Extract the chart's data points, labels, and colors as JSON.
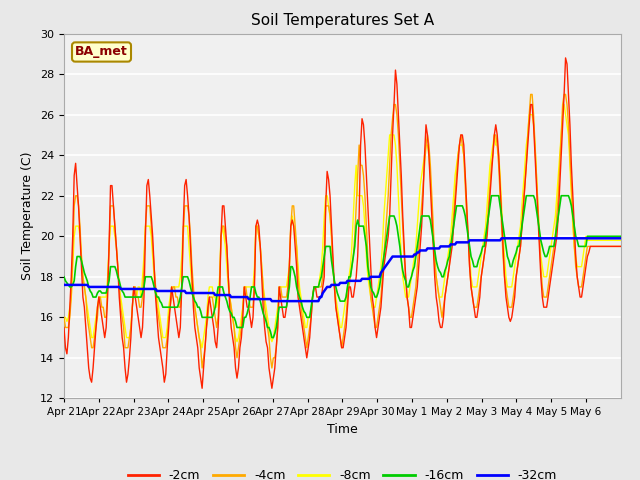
{
  "title": "Soil Temperatures Set A",
  "xlabel": "Time",
  "ylabel": "Soil Temperature (C)",
  "ylim": [
    12,
    30
  ],
  "annotation": "BA_met",
  "bg_color": "#e8e8e8",
  "plot_bg": "#f0f0f0",
  "series_colors": {
    "-2cm": "#ff2200",
    "-4cm": "#ffaa00",
    "-8cm": "#ffff00",
    "-16cm": "#00cc00",
    "-32cm": "#0000ff"
  },
  "x_tick_labels": [
    "Apr 21",
    "Apr 22",
    "Apr 23",
    "Apr 24",
    "Apr 25",
    "Apr 26",
    "Apr 27",
    "Apr 28",
    "Apr 29",
    "Apr 30",
    "May 1",
    "May 2",
    "May 3",
    "May 4",
    "May 5",
    "May 6"
  ],
  "n_days": 16,
  "pts_per_day": 24,
  "data_2cm": [
    15.5,
    14.5,
    14.2,
    15.0,
    16.5,
    18.0,
    20.0,
    23.0,
    23.6,
    22.5,
    21.5,
    20.0,
    18.5,
    17.0,
    16.5,
    15.5,
    14.5,
    13.5,
    13.0,
    12.8,
    13.5,
    14.5,
    15.5,
    16.5,
    17.0,
    16.5,
    16.0,
    15.5,
    15.0,
    15.5,
    17.0,
    19.5,
    22.5,
    22.5,
    21.5,
    20.5,
    19.5,
    18.5,
    17.0,
    16.0,
    15.0,
    14.5,
    13.5,
    12.8,
    13.2,
    14.0,
    15.0,
    16.5,
    17.5,
    17.0,
    16.5,
    16.0,
    15.5,
    15.0,
    15.5,
    17.0,
    20.0,
    22.5,
    22.8,
    22.0,
    21.0,
    20.0,
    18.5,
    17.0,
    16.0,
    15.0,
    14.5,
    14.0,
    13.5,
    12.8,
    13.2,
    14.5,
    15.5,
    16.5,
    17.5,
    17.0,
    16.5,
    16.0,
    15.5,
    15.0,
    15.5,
    17.5,
    20.5,
    22.5,
    22.8,
    22.0,
    21.0,
    19.5,
    18.0,
    16.5,
    15.5,
    15.0,
    14.5,
    13.5,
    13.0,
    12.5,
    13.5,
    14.5,
    15.5,
    16.5,
    17.0,
    16.5,
    16.0,
    15.5,
    14.8,
    14.5,
    15.5,
    17.0,
    20.0,
    21.5,
    21.5,
    20.5,
    19.5,
    18.0,
    16.5,
    15.5,
    15.0,
    14.5,
    13.5,
    13.0,
    13.5,
    14.5,
    15.0,
    16.0,
    17.5,
    17.0,
    16.5,
    16.5,
    16.0,
    15.5,
    16.0,
    17.5,
    20.5,
    20.8,
    20.5,
    19.5,
    18.0,
    16.5,
    15.5,
    14.8,
    14.5,
    13.5,
    13.0,
    12.5,
    13.0,
    13.5,
    14.5,
    15.5,
    17.5,
    17.0,
    16.5,
    16.0,
    16.0,
    16.5,
    17.0,
    18.5,
    20.5,
    20.8,
    20.5,
    19.5,
    18.5,
    17.0,
    16.5,
    16.0,
    15.5,
    15.0,
    14.5,
    14.0,
    14.5,
    15.0,
    16.0,
    17.0,
    17.5,
    17.5,
    17.0,
    17.0,
    17.0,
    17.0,
    17.5,
    18.0,
    21.5,
    23.2,
    22.8,
    22.0,
    20.5,
    19.0,
    17.5,
    16.5,
    16.0,
    15.5,
    15.0,
    14.5,
    14.5,
    15.0,
    15.5,
    16.5,
    17.5,
    17.5,
    17.0,
    17.0,
    17.5,
    18.0,
    19.0,
    21.0,
    24.5,
    25.8,
    25.5,
    24.5,
    23.0,
    21.5,
    20.0,
    18.5,
    17.0,
    16.5,
    15.5,
    15.0,
    15.5,
    16.0,
    16.5,
    17.5,
    18.5,
    19.0,
    19.5,
    20.0,
    21.0,
    23.0,
    25.0,
    26.5,
    28.2,
    27.5,
    26.0,
    24.5,
    23.0,
    21.0,
    19.5,
    18.0,
    17.0,
    16.5,
    15.5,
    15.5,
    16.0,
    16.5,
    17.0,
    17.5,
    18.5,
    19.5,
    20.5,
    22.0,
    24.0,
    25.5,
    25.0,
    24.0,
    22.5,
    21.0,
    19.5,
    18.0,
    17.0,
    16.5,
    15.8,
    15.5,
    15.5,
    16.0,
    17.0,
    17.5,
    18.0,
    18.5,
    19.0,
    19.5,
    20.5,
    21.5,
    22.5,
    23.5,
    24.5,
    25.0,
    25.0,
    24.5,
    23.0,
    21.5,
    20.0,
    18.5,
    17.5,
    17.0,
    16.5,
    16.0,
    16.0,
    16.5,
    17.0,
    18.0,
    18.5,
    19.0,
    19.5,
    20.0,
    21.0,
    22.0,
    23.0,
    24.0,
    25.0,
    25.5,
    25.0,
    24.0,
    22.5,
    21.0,
    19.5,
    18.0,
    17.0,
    16.5,
    16.0,
    15.8,
    16.0,
    16.5,
    17.0,
    18.0,
    18.5,
    19.0,
    19.5,
    20.5,
    21.5,
    22.5,
    23.5,
    24.5,
    25.5,
    26.5,
    26.5,
    25.5,
    24.0,
    22.5,
    21.0,
    19.5,
    18.0,
    17.0,
    16.5,
    16.5,
    16.5,
    17.0,
    17.5,
    18.0,
    18.5,
    19.0,
    19.5,
    20.0,
    21.0,
    22.5,
    24.0,
    25.5,
    27.0,
    28.8,
    28.5,
    27.0,
    25.5,
    23.5,
    22.0,
    20.5,
    19.0,
    18.0,
    17.5,
    17.0,
    17.0,
    17.5,
    18.0,
    18.5,
    19.0,
    19.2,
    19.5,
    19.5,
    19.5,
    19.5,
    19.5,
    19.5,
    19.5,
    19.5,
    19.5,
    19.5,
    19.5,
    19.5,
    19.5,
    19.5,
    19.5,
    19.5,
    19.5,
    19.5,
    19.5,
    19.5,
    19.5,
    19.5
  ],
  "data_4cm": [
    16.0,
    15.5,
    15.5,
    15.5,
    16.0,
    17.0,
    19.0,
    21.5,
    22.0,
    22.0,
    21.5,
    20.5,
    19.0,
    18.0,
    17.5,
    17.0,
    16.0,
    15.5,
    15.0,
    14.5,
    14.5,
    15.0,
    15.5,
    16.0,
    17.0,
    17.0,
    16.5,
    16.5,
    16.0,
    16.0,
    17.5,
    19.5,
    21.5,
    21.5,
    21.5,
    20.5,
    19.5,
    18.5,
    17.5,
    16.5,
    16.0,
    15.5,
    14.5,
    14.5,
    14.5,
    15.0,
    15.5,
    16.5,
    17.5,
    17.5,
    17.0,
    17.0,
    16.5,
    16.5,
    17.0,
    18.5,
    20.5,
    21.5,
    21.5,
    21.5,
    20.5,
    19.5,
    18.5,
    17.5,
    16.5,
    16.0,
    15.5,
    15.0,
    14.5,
    14.5,
    14.5,
    15.0,
    16.0,
    16.5,
    17.0,
    17.5,
    17.5,
    17.0,
    17.0,
    16.5,
    16.5,
    17.5,
    20.0,
    21.5,
    21.5,
    21.5,
    21.0,
    20.0,
    18.5,
    17.5,
    16.5,
    16.0,
    15.5,
    15.0,
    14.5,
    13.5,
    14.0,
    14.5,
    15.5,
    16.0,
    17.0,
    17.0,
    17.0,
    16.5,
    16.0,
    15.5,
    16.0,
    17.5,
    20.0,
    20.5,
    20.5,
    20.0,
    19.5,
    18.0,
    17.0,
    16.5,
    16.0,
    15.5,
    14.5,
    14.0,
    14.5,
    15.0,
    15.5,
    16.5,
    17.5,
    17.5,
    17.0,
    17.0,
    16.5,
    16.5,
    16.5,
    18.0,
    20.5,
    20.5,
    20.0,
    19.5,
    18.5,
    17.5,
    16.5,
    16.0,
    15.5,
    15.0,
    14.0,
    13.5,
    14.0,
    14.0,
    14.5,
    15.5,
    17.5,
    17.5,
    17.0,
    17.0,
    17.0,
    17.0,
    17.5,
    18.5,
    20.5,
    21.5,
    21.5,
    20.5,
    19.5,
    18.0,
    17.0,
    16.5,
    16.0,
    15.5,
    15.0,
    14.5,
    15.0,
    15.5,
    16.0,
    17.0,
    17.5,
    17.5,
    17.5,
    17.5,
    17.5,
    17.5,
    18.0,
    19.0,
    21.5,
    21.5,
    21.5,
    21.0,
    20.0,
    18.5,
    17.5,
    16.5,
    16.0,
    15.5,
    15.0,
    14.5,
    15.0,
    15.5,
    16.0,
    17.0,
    17.5,
    18.0,
    18.5,
    19.0,
    20.0,
    21.5,
    23.0,
    24.5,
    23.5,
    23.5,
    23.0,
    22.0,
    20.5,
    19.0,
    18.0,
    17.0,
    16.5,
    16.0,
    15.5,
    15.5,
    16.0,
    16.5,
    17.0,
    18.0,
    19.0,
    20.0,
    21.0,
    22.0,
    23.5,
    25.0,
    25.8,
    26.5,
    26.5,
    26.0,
    25.0,
    23.5,
    22.0,
    20.5,
    19.0,
    18.0,
    17.0,
    16.5,
    16.0,
    16.0,
    16.5,
    17.0,
    17.5,
    18.5,
    19.5,
    20.5,
    21.5,
    22.5,
    23.5,
    24.5,
    25.0,
    24.5,
    23.5,
    22.0,
    20.5,
    19.0,
    18.0,
    17.5,
    17.0,
    16.5,
    16.0,
    16.5,
    17.0,
    17.5,
    18.0,
    18.5,
    19.5,
    20.0,
    21.0,
    22.0,
    23.0,
    24.0,
    24.5,
    25.0,
    24.5,
    24.0,
    22.5,
    21.0,
    20.0,
    18.5,
    17.5,
    17.0,
    16.5,
    16.5,
    16.5,
    17.0,
    17.5,
    18.0,
    18.5,
    19.0,
    19.5,
    20.5,
    21.5,
    22.5,
    23.5,
    24.0,
    25.0,
    25.0,
    24.5,
    23.5,
    22.0,
    20.5,
    19.0,
    18.0,
    17.5,
    17.0,
    16.5,
    16.5,
    16.5,
    17.0,
    17.5,
    18.0,
    18.5,
    19.0,
    19.5,
    20.5,
    21.5,
    22.5,
    23.5,
    25.0,
    26.0,
    27.0,
    27.0,
    26.0,
    24.5,
    23.0,
    21.5,
    20.0,
    18.5,
    17.5,
    17.0,
    17.0,
    17.0,
    17.5,
    18.0,
    18.5,
    19.0,
    19.5,
    20.0,
    21.0,
    22.0,
    23.5,
    25.0,
    26.5,
    27.0,
    27.0,
    26.5,
    25.5,
    24.0,
    22.5,
    21.0,
    19.5,
    18.5,
    18.0,
    17.5,
    17.5,
    17.5,
    18.0,
    18.5,
    19.0,
    19.5,
    19.5,
    19.5,
    19.5,
    19.5,
    19.5,
    19.5,
    19.5,
    19.5,
    19.5,
    19.5,
    19.5,
    19.5,
    19.5,
    19.5,
    19.5,
    19.5,
    19.5,
    19.5,
    19.5,
    19.5,
    19.5,
    19.5,
    19.5
  ],
  "data_8cm": [
    16.0,
    16.0,
    15.8,
    16.0,
    16.5,
    17.0,
    18.5,
    20.0,
    20.5,
    20.5,
    20.5,
    20.0,
    19.0,
    18.0,
    17.5,
    17.0,
    16.5,
    16.0,
    15.5,
    15.0,
    15.0,
    15.5,
    16.0,
    16.5,
    17.0,
    17.0,
    17.0,
    17.0,
    17.0,
    17.0,
    18.0,
    19.5,
    20.5,
    20.5,
    20.5,
    20.0,
    19.5,
    18.5,
    17.5,
    17.0,
    16.5,
    16.0,
    15.5,
    15.0,
    15.0,
    15.0,
    15.5,
    16.5,
    17.5,
    17.5,
    17.0,
    17.5,
    17.5,
    17.0,
    18.0,
    19.0,
    20.5,
    20.5,
    20.5,
    20.5,
    20.0,
    19.0,
    18.0,
    17.5,
    17.0,
    16.5,
    16.0,
    15.5,
    15.0,
    15.0,
    15.0,
    15.5,
    16.5,
    17.0,
    17.5,
    17.5,
    17.5,
    17.5,
    17.5,
    17.5,
    18.0,
    19.0,
    20.5,
    20.5,
    20.5,
    20.5,
    19.5,
    18.5,
    17.5,
    17.0,
    16.5,
    16.0,
    15.5,
    15.0,
    14.8,
    14.5,
    15.0,
    15.5,
    16.0,
    17.0,
    17.5,
    17.5,
    17.5,
    17.0,
    17.0,
    16.5,
    17.0,
    18.0,
    20.0,
    20.5,
    20.0,
    19.5,
    18.5,
    17.5,
    17.0,
    16.5,
    16.0,
    15.5,
    15.0,
    14.8,
    15.0,
    15.5,
    16.0,
    16.5,
    17.5,
    17.5,
    17.5,
    17.5,
    17.5,
    17.5,
    17.5,
    18.5,
    20.5,
    20.5,
    20.0,
    19.5,
    18.5,
    17.5,
    17.0,
    16.5,
    16.0,
    15.5,
    15.0,
    14.8,
    15.0,
    15.5,
    16.0,
    16.5,
    17.5,
    17.5,
    17.5,
    17.5,
    17.5,
    17.5,
    18.0,
    18.5,
    20.5,
    21.0,
    20.5,
    20.0,
    19.5,
    18.5,
    17.5,
    17.0,
    16.5,
    16.0,
    15.5,
    15.5,
    16.0,
    16.0,
    16.5,
    17.0,
    17.5,
    17.5,
    17.5,
    17.5,
    18.0,
    18.5,
    19.5,
    21.0,
    22.0,
    22.0,
    21.5,
    21.0,
    20.0,
    18.5,
    17.5,
    17.0,
    16.5,
    16.0,
    15.5,
    15.5,
    16.0,
    16.5,
    17.0,
    17.5,
    18.0,
    18.5,
    19.5,
    21.0,
    22.5,
    23.5,
    22.0,
    22.0,
    22.0,
    22.0,
    21.5,
    20.5,
    19.0,
    18.0,
    17.5,
    17.0,
    16.5,
    16.5,
    16.5,
    17.0,
    17.5,
    18.0,
    18.5,
    19.5,
    21.0,
    22.0,
    23.0,
    24.0,
    25.0,
    25.0,
    25.0,
    25.0,
    24.5,
    23.5,
    22.0,
    20.5,
    19.0,
    18.0,
    17.5,
    17.0,
    17.0,
    17.0,
    17.5,
    18.0,
    18.5,
    19.0,
    19.5,
    20.5,
    21.5,
    22.5,
    23.0,
    23.5,
    24.0,
    24.5,
    24.5,
    24.0,
    23.0,
    21.5,
    20.0,
    18.5,
    18.0,
    17.5,
    17.0,
    17.0,
    17.0,
    17.5,
    18.0,
    18.5,
    19.0,
    19.5,
    20.0,
    21.0,
    22.0,
    23.0,
    23.5,
    24.0,
    24.5,
    24.5,
    24.5,
    24.0,
    23.0,
    21.5,
    20.0,
    19.0,
    18.0,
    17.5,
    17.5,
    17.5,
    17.5,
    18.0,
    18.5,
    19.0,
    19.5,
    20.0,
    20.5,
    21.5,
    22.5,
    23.5,
    24.0,
    24.5,
    25.0,
    24.5,
    24.5,
    24.0,
    23.0,
    21.5,
    20.0,
    19.0,
    18.0,
    17.5,
    17.5,
    17.5,
    17.5,
    18.0,
    18.5,
    19.0,
    19.5,
    20.0,
    20.5,
    21.5,
    22.5,
    23.5,
    24.5,
    25.0,
    26.0,
    26.0,
    26.0,
    25.5,
    24.5,
    23.0,
    21.5,
    20.0,
    19.0,
    18.5,
    18.0,
    18.0,
    18.0,
    18.5,
    19.0,
    19.5,
    20.0,
    20.5,
    21.0,
    22.0,
    23.0,
    24.0,
    25.0,
    26.0,
    26.5,
    26.0,
    25.5,
    25.0,
    23.5,
    22.0,
    20.5,
    19.5,
    19.0,
    18.5,
    18.5,
    18.5,
    18.5,
    19.0,
    19.5,
    20.0,
    19.8,
    19.8,
    19.8,
    19.8,
    19.8,
    19.8,
    19.8,
    19.8,
    19.8,
    19.8,
    19.8,
    19.8,
    19.8,
    19.8,
    19.8,
    19.8,
    19.8,
    19.8,
    19.8,
    19.8,
    19.8,
    19.8,
    19.8,
    19.8
  ],
  "data_16cm": [
    18.0,
    17.8,
    17.7,
    17.6,
    17.5,
    17.5,
    17.6,
    17.8,
    18.5,
    19.0,
    19.0,
    19.0,
    18.8,
    18.5,
    18.2,
    18.0,
    17.8,
    17.5,
    17.3,
    17.2,
    17.0,
    17.0,
    17.0,
    17.2,
    17.3,
    17.3,
    17.2,
    17.2,
    17.2,
    17.2,
    17.5,
    17.8,
    18.5,
    18.5,
    18.5,
    18.5,
    18.3,
    18.0,
    17.8,
    17.5,
    17.3,
    17.2,
    17.0,
    17.0,
    17.0,
    17.0,
    17.0,
    17.0,
    17.0,
    17.0,
    17.0,
    17.0,
    17.0,
    17.0,
    17.2,
    17.5,
    18.0,
    18.0,
    18.0,
    18.0,
    18.0,
    17.8,
    17.5,
    17.2,
    17.0,
    17.0,
    16.8,
    16.7,
    16.5,
    16.5,
    16.5,
    16.5,
    16.5,
    16.5,
    16.5,
    16.5,
    16.5,
    16.5,
    16.5,
    16.7,
    17.0,
    17.5,
    18.0,
    18.0,
    18.0,
    18.0,
    17.8,
    17.5,
    17.2,
    17.0,
    16.8,
    16.7,
    16.5,
    16.5,
    16.3,
    16.0,
    16.0,
    16.0,
    16.0,
    16.0,
    16.0,
    16.0,
    16.0,
    16.2,
    16.5,
    17.0,
    17.5,
    17.5,
    17.5,
    17.5,
    17.2,
    17.0,
    16.8,
    16.5,
    16.3,
    16.2,
    16.0,
    16.0,
    15.8,
    15.5,
    15.5,
    15.5,
    15.5,
    15.5,
    16.0,
    16.0,
    16.2,
    16.5,
    17.0,
    17.5,
    17.5,
    17.5,
    17.2,
    17.0,
    17.0,
    16.8,
    16.5,
    16.2,
    16.0,
    15.8,
    15.5,
    15.5,
    15.3,
    15.0,
    15.0,
    15.2,
    15.5,
    16.0,
    16.5,
    16.5,
    16.5,
    16.5,
    16.5,
    16.5,
    17.0,
    17.5,
    18.5,
    18.5,
    18.3,
    18.0,
    17.5,
    17.2,
    17.0,
    16.8,
    16.5,
    16.3,
    16.2,
    16.0,
    16.0,
    16.0,
    16.5,
    17.0,
    17.5,
    17.5,
    17.5,
    17.5,
    17.8,
    18.0,
    18.5,
    19.0,
    19.5,
    19.5,
    19.5,
    19.5,
    18.8,
    18.3,
    17.8,
    17.5,
    17.2,
    17.0,
    16.8,
    16.8,
    16.8,
    16.8,
    17.0,
    17.5,
    18.0,
    18.0,
    18.5,
    19.0,
    19.5,
    20.5,
    20.8,
    20.5,
    20.5,
    20.5,
    20.5,
    20.0,
    19.5,
    18.5,
    18.0,
    17.5,
    17.3,
    17.2,
    17.0,
    17.0,
    17.2,
    17.5,
    18.0,
    18.5,
    19.0,
    19.5,
    20.0,
    20.5,
    21.0,
    21.0,
    21.0,
    21.0,
    20.8,
    20.5,
    20.0,
    19.5,
    18.8,
    18.3,
    18.0,
    17.8,
    17.5,
    17.5,
    17.8,
    18.0,
    18.3,
    18.5,
    19.0,
    19.5,
    20.0,
    20.5,
    21.0,
    21.0,
    21.0,
    21.0,
    21.0,
    21.0,
    20.8,
    20.3,
    19.8,
    19.3,
    18.8,
    18.5,
    18.3,
    18.2,
    18.0,
    18.0,
    18.3,
    18.5,
    18.8,
    19.0,
    19.5,
    20.0,
    20.5,
    21.0,
    21.5,
    21.5,
    21.5,
    21.5,
    21.5,
    21.3,
    21.0,
    20.5,
    20.0,
    19.5,
    19.0,
    18.8,
    18.5,
    18.5,
    18.5,
    18.8,
    19.0,
    19.2,
    19.5,
    19.5,
    20.0,
    20.5,
    21.0,
    21.5,
    22.0,
    22.0,
    22.0,
    22.0,
    22.0,
    22.0,
    21.5,
    21.0,
    20.5,
    20.0,
    19.5,
    19.0,
    18.8,
    18.5,
    18.5,
    18.8,
    19.0,
    19.2,
    19.5,
    19.5,
    20.0,
    20.5,
    21.0,
    21.5,
    22.0,
    22.0,
    22.0,
    22.0,
    22.0,
    22.0,
    21.8,
    21.3,
    20.8,
    20.3,
    19.8,
    19.5,
    19.2,
    19.0,
    19.0,
    19.2,
    19.5,
    19.5,
    19.5,
    19.5,
    20.0,
    20.5,
    21.0,
    21.5,
    22.0,
    22.0,
    22.0,
    22.0,
    22.0,
    22.0,
    21.8,
    21.5,
    21.0,
    20.5,
    20.0,
    19.8,
    19.5,
    19.5,
    19.5,
    19.5,
    19.5,
    19.5,
    20.0,
    20.0,
    20.0,
    20.0,
    20.0,
    20.0,
    20.0,
    20.0,
    20.0,
    20.0,
    20.0,
    20.0,
    20.0,
    20.0,
    20.0,
    20.0,
    20.0,
    20.0,
    20.0,
    20.0,
    20.0,
    20.0,
    20.0,
    20.0
  ],
  "data_32cm": [
    17.6,
    17.6,
    17.6,
    17.6,
    17.6,
    17.6,
    17.6,
    17.6,
    17.6,
    17.6,
    17.6,
    17.6,
    17.6,
    17.6,
    17.6,
    17.6,
    17.6,
    17.5,
    17.5,
    17.5,
    17.5,
    17.5,
    17.5,
    17.5,
    17.5,
    17.5,
    17.5,
    17.5,
    17.5,
    17.5,
    17.5,
    17.5,
    17.5,
    17.5,
    17.5,
    17.5,
    17.5,
    17.5,
    17.5,
    17.4,
    17.4,
    17.4,
    17.4,
    17.4,
    17.4,
    17.4,
    17.4,
    17.4,
    17.4,
    17.4,
    17.4,
    17.4,
    17.4,
    17.4,
    17.4,
    17.4,
    17.4,
    17.4,
    17.4,
    17.4,
    17.4,
    17.4,
    17.4,
    17.4,
    17.3,
    17.3,
    17.3,
    17.3,
    17.3,
    17.3,
    17.3,
    17.3,
    17.3,
    17.3,
    17.3,
    17.3,
    17.3,
    17.3,
    17.3,
    17.3,
    17.3,
    17.3,
    17.3,
    17.3,
    17.2,
    17.2,
    17.2,
    17.2,
    17.2,
    17.2,
    17.2,
    17.2,
    17.2,
    17.2,
    17.2,
    17.2,
    17.2,
    17.2,
    17.2,
    17.2,
    17.2,
    17.2,
    17.2,
    17.2,
    17.1,
    17.1,
    17.1,
    17.1,
    17.1,
    17.1,
    17.1,
    17.1,
    17.1,
    17.1,
    17.1,
    17.0,
    17.0,
    17.0,
    17.0,
    17.0,
    17.0,
    17.0,
    17.0,
    17.0,
    17.0,
    17.0,
    17.0,
    16.9,
    16.9,
    16.9,
    16.9,
    16.9,
    16.9,
    16.9,
    16.9,
    16.9,
    16.9,
    16.9,
    16.9,
    16.9,
    16.9,
    16.9,
    16.9,
    16.8,
    16.8,
    16.8,
    16.8,
    16.8,
    16.8,
    16.8,
    16.8,
    16.8,
    16.8,
    16.8,
    16.8,
    16.8,
    16.8,
    16.8,
    16.8,
    16.8,
    16.8,
    16.8,
    16.8,
    16.8,
    16.8,
    16.8,
    16.8,
    16.8,
    16.8,
    16.8,
    16.8,
    16.8,
    16.8,
    16.8,
    16.8,
    16.8,
    17.0,
    17.0,
    17.2,
    17.3,
    17.4,
    17.5,
    17.5,
    17.5,
    17.6,
    17.6,
    17.6,
    17.6,
    17.6,
    17.6,
    17.7,
    17.7,
    17.7,
    17.7,
    17.7,
    17.8,
    17.8,
    17.8,
    17.8,
    17.8,
    17.8,
    17.8,
    17.8,
    17.8,
    17.8,
    17.9,
    17.9,
    17.9,
    17.9,
    17.9,
    17.9,
    18.0,
    18.0,
    18.0,
    18.0,
    18.0,
    18.0,
    18.0,
    18.2,
    18.3,
    18.4,
    18.5,
    18.6,
    18.7,
    18.8,
    18.9,
    19.0,
    19.0,
    19.0,
    19.0,
    19.0,
    19.0,
    19.0,
    19.0,
    19.0,
    19.0,
    19.0,
    19.0,
    19.0,
    19.0,
    19.0,
    19.1,
    19.1,
    19.2,
    19.2,
    19.3,
    19.3,
    19.3,
    19.3,
    19.3,
    19.4,
    19.4,
    19.4,
    19.4,
    19.4,
    19.4,
    19.4,
    19.4,
    19.4,
    19.5,
    19.5,
    19.5,
    19.5,
    19.5,
    19.5,
    19.5,
    19.6,
    19.6,
    19.6,
    19.6,
    19.7,
    19.7,
    19.7,
    19.7,
    19.7,
    19.7,
    19.7,
    19.7,
    19.7,
    19.8,
    19.8,
    19.8,
    19.8,
    19.8,
    19.8,
    19.8,
    19.8,
    19.8,
    19.8,
    19.8,
    19.8,
    19.8,
    19.8,
    19.8,
    19.8,
    19.8,
    19.8,
    19.8,
    19.8,
    19.8,
    19.8,
    19.9,
    19.9,
    19.9,
    19.9,
    19.9,
    19.9,
    19.9,
    19.9,
    19.9,
    19.9,
    19.9,
    19.9,
    19.9,
    19.9,
    19.9,
    19.9,
    19.9,
    19.9,
    19.9,
    19.9,
    19.9,
    19.9,
    19.9,
    19.9,
    19.9,
    19.9,
    19.9,
    19.9,
    19.9,
    19.9,
    19.9,
    19.9,
    19.9,
    19.9,
    19.9,
    19.9,
    19.9,
    19.9,
    19.9,
    19.9,
    19.9,
    19.9,
    19.9,
    19.9,
    19.9,
    19.9,
    19.9,
    19.9,
    19.9,
    19.9,
    19.9,
    19.9,
    19.9,
    19.9,
    19.9,
    19.9,
    19.9,
    19.9,
    19.9,
    19.9,
    19.9,
    19.9,
    19.9,
    19.9,
    19.9,
    19.9,
    19.9,
    19.9,
    19.9,
    19.9,
    19.9,
    19.9,
    19.9,
    19.9,
    19.9,
    19.9,
    19.9,
    19.9,
    19.9,
    19.9,
    19.9,
    19.9,
    19.9
  ]
}
